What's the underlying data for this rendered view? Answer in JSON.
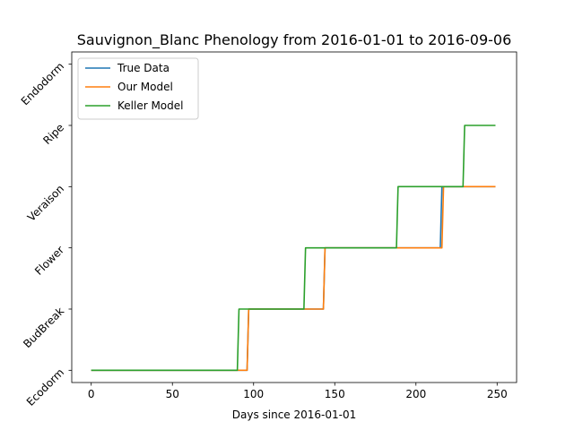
{
  "chart_data": {
    "type": "line",
    "title": "Sauvignon_Blanc Phenology from 2016-01-01 to 2016-09-06",
    "xlabel": "Days since 2016-01-01",
    "ylabel": "",
    "xlim": [
      -12,
      262
    ],
    "ylim": [
      -0.2,
      5.2
    ],
    "x_ticks": [
      0,
      50,
      100,
      150,
      200,
      250
    ],
    "y_ticks": [
      0,
      1,
      2,
      3,
      4,
      5
    ],
    "y_tick_labels": [
      "Ecodorm",
      "BudBreak",
      "Flower",
      "Veraison",
      "Ripe",
      "Endodorm"
    ],
    "grid": false,
    "legend": "top-left",
    "series": [
      {
        "name": "True Data",
        "color": "#1f77b4",
        "points": [
          [
            0,
            0
          ],
          [
            96,
            0
          ],
          [
            97,
            1
          ],
          [
            143,
            1
          ],
          [
            144,
            2
          ],
          [
            215,
            2
          ],
          [
            216,
            3
          ],
          [
            249,
            3
          ]
        ]
      },
      {
        "name": "Our Model",
        "color": "#ff7f0e",
        "points": [
          [
            0,
            0
          ],
          [
            96,
            0
          ],
          [
            97,
            1
          ],
          [
            143,
            1
          ],
          [
            144,
            2
          ],
          [
            216,
            2
          ],
          [
            217,
            3
          ],
          [
            249,
            3
          ]
        ]
      },
      {
        "name": "Keller Model",
        "color": "#2ca02c",
        "points": [
          [
            0,
            0
          ],
          [
            90,
            0
          ],
          [
            91,
            1
          ],
          [
            131,
            1
          ],
          [
            132,
            2
          ],
          [
            188,
            2
          ],
          [
            189,
            3
          ],
          [
            229,
            3
          ],
          [
            230,
            4
          ],
          [
            249,
            4
          ]
        ]
      }
    ]
  }
}
